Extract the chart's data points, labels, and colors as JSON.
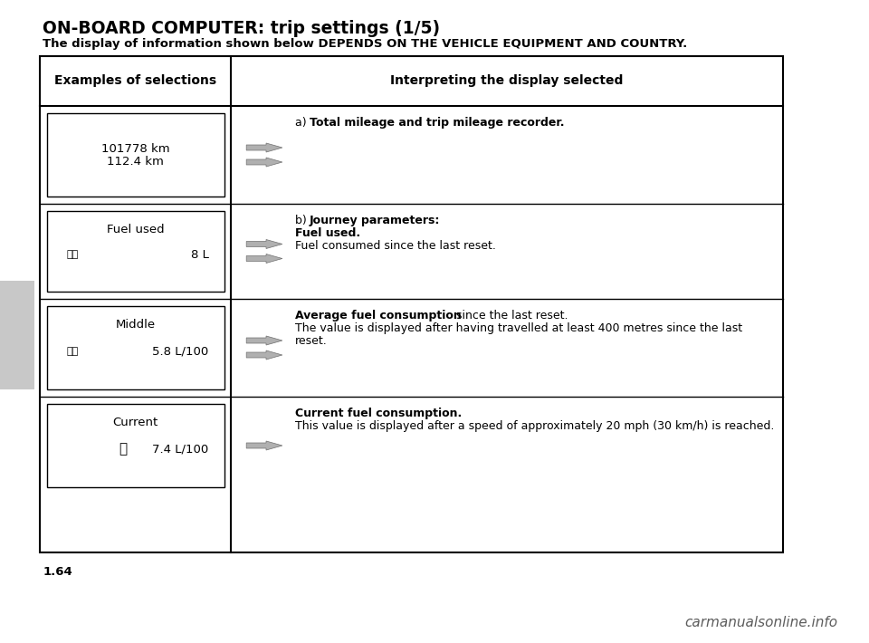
{
  "title": "ON-BOARD COMPUTER: trip settings (1/5)",
  "subtitle": "The display of information shown below DEPENDS ON THE VEHICLE EQUIPMENT AND COUNTRY.",
  "col1_header": "Examples of selections",
  "col2_header": "Interpreting the display selected",
  "page_number": "1.64",
  "watermark": "carmanualsonline.info",
  "rows": [
    {
      "left_lines": [
        "101778 km",
        "112.4 km"
      ],
      "left_car": null,
      "left_car_prefix": null,
      "left_car_value": null,
      "right_text_parts": [
        {
          "text": "a) ",
          "bold": false
        },
        {
          "text": "Total mileage and trip mileage recorder.",
          "bold": true
        }
      ],
      "arrow_style": "double"
    },
    {
      "left_lines": [
        "Fuel used"
      ],
      "left_car": "small",
      "left_car_prefix": true,
      "left_car_value": "8 L",
      "right_text_parts": [
        {
          "text": "b) ",
          "bold": false
        },
        {
          "text": "Journey parameters:\n",
          "bold": true
        },
        {
          "text": "Fuel used.\n",
          "bold": true
        },
        {
          "text": "Fuel consumed since the last reset.",
          "bold": false
        }
      ],
      "arrow_style": "double"
    },
    {
      "left_lines": [
        "Middle"
      ],
      "left_car": "small",
      "left_car_prefix": true,
      "left_car_value": "5.8 L/100",
      "right_text_parts": [
        {
          "text": "Average fuel consumption",
          "bold": true
        },
        {
          "text": " since the last reset.\nThe value is displayed after having travelled at least 400 metres since the last\nreset.",
          "bold": false
        }
      ],
      "arrow_style": "double"
    },
    {
      "left_lines": [
        "Current"
      ],
      "left_car": "large",
      "left_car_prefix": false,
      "left_car_value": "7.4 L/100",
      "right_text_parts": [
        {
          "text": "Current fuel consumption.\n",
          "bold": true
        },
        {
          "text": "This value is displayed after a speed of approximately 20 mph (30 km/h) is reached.",
          "bold": false
        }
      ],
      "arrow_style": "single"
    }
  ]
}
